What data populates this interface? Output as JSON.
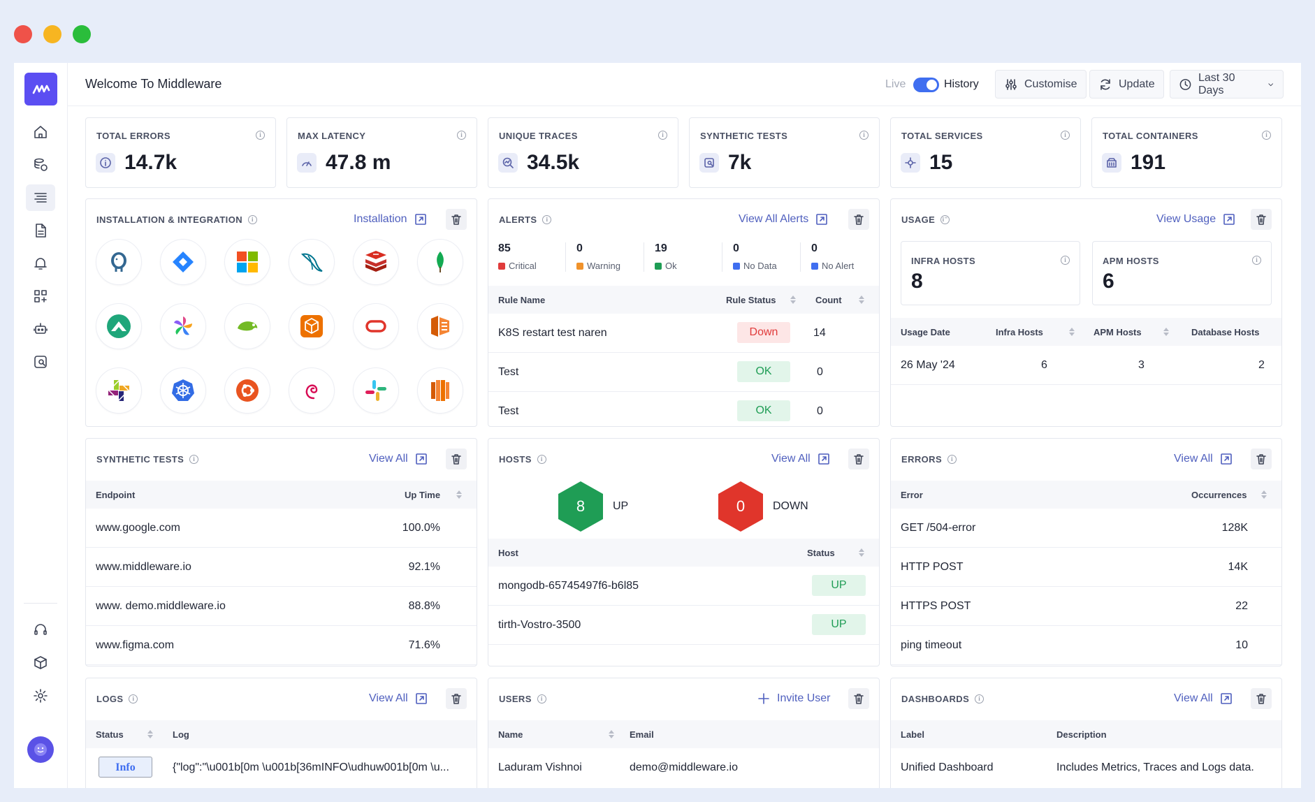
{
  "app": {
    "title": "Welcome To Middleware",
    "live_label": "Live",
    "history_label": "History"
  },
  "toolbar": {
    "customise": "Customise",
    "update": "Update",
    "range": "Last 30 Days"
  },
  "stats": [
    {
      "label": "TOTAL ERRORS",
      "value": "14.7k",
      "icon": "info-circle-icon"
    },
    {
      "label": "MAX LATENCY",
      "value": "47.8 m",
      "icon": "gauge-icon"
    },
    {
      "label": "UNIQUE TRACES",
      "value": "34.5k",
      "icon": "trace-search-icon"
    },
    {
      "label": "SYNTHETIC TESTS",
      "value": "7k",
      "icon": "synthetic-test-icon"
    },
    {
      "label": "TOTAL SERVICES",
      "value": "15",
      "icon": "services-icon"
    },
    {
      "label": "TOTAL CONTAINERS",
      "value": "191",
      "icon": "container-icon"
    }
  ],
  "installation": {
    "title": "INSTALLATION & INTEGRATION",
    "link": "Installation",
    "integrations": [
      "postgresql-icon",
      "jira-icon",
      "microsoft-icon",
      "mysql-icon",
      "redis-icon",
      "mongodb-icon",
      "rancher-icon",
      "kubernetes-pinwheel-icon",
      "opensuse-icon",
      "aws-package-icon",
      "oracle-icon",
      "aws-ecs-icon",
      "centos-icon",
      "kubernetes-icon",
      "ubuntu-icon",
      "debian-icon",
      "slack-icon",
      "aws-lambda-icon"
    ]
  },
  "alerts": {
    "title": "ALERTS",
    "link": "View All Alerts",
    "summary": [
      {
        "count": "85",
        "label": "Critical",
        "color": "#e03b3b"
      },
      {
        "count": "0",
        "label": "Warning",
        "color": "#f0922b"
      },
      {
        "count": "19",
        "label": "Ok",
        "color": "#1f9d55"
      },
      {
        "count": "0",
        "label": "No Data",
        "color": "#3f6ef0"
      },
      {
        "count": "0",
        "label": "No Alert",
        "color": "#3f6ef0"
      }
    ],
    "columns": [
      "Rule Name",
      "Rule Status",
      "Count"
    ],
    "rows": [
      {
        "name": "K8S restart test naren",
        "status": "Down",
        "count": "14"
      },
      {
        "name": "Test",
        "status": "OK",
        "count": "0"
      },
      {
        "name": "Test",
        "status": "OK",
        "count": "0"
      }
    ]
  },
  "usage": {
    "title": "USAGE",
    "link": "View Usage",
    "infra_label": "INFRA HOSTS",
    "infra_value": "8",
    "apm_label": "APM HOSTS",
    "apm_value": "6",
    "columns": [
      "Usage Date",
      "Infra Hosts",
      "APM Hosts",
      "Database Hosts"
    ],
    "rows": [
      {
        "date": "26 May '24",
        "infra": "6",
        "apm": "3",
        "db": "2"
      }
    ]
  },
  "synthetic": {
    "title": "SYNTHETIC TESTS",
    "link": "View All",
    "columns": [
      "Endpoint",
      "Up Time"
    ],
    "rows": [
      {
        "endpoint": "www.google.com",
        "uptime": "100.0%"
      },
      {
        "endpoint": "www.middleware.io",
        "uptime": "92.1%"
      },
      {
        "endpoint": "www. demo.middleware.io",
        "uptime": "88.8%"
      },
      {
        "endpoint": "www.figma.com",
        "uptime": "71.6%"
      }
    ]
  },
  "hosts": {
    "title": "HOSTS",
    "link": "View All",
    "up_count": "8",
    "up_label": "UP",
    "down_count": "0",
    "down_label": "DOWN",
    "columns": [
      "Host",
      "Status"
    ],
    "rows": [
      {
        "host": "mongodb-65745497f6-b6l85",
        "status": "UP"
      },
      {
        "host": "tirth-Vostro-3500",
        "status": "UP"
      }
    ]
  },
  "errors": {
    "title": "ERRORS",
    "link": "View All",
    "columns": [
      "Error",
      "Occurrences"
    ],
    "rows": [
      {
        "error": "GET /504-error",
        "count": "128K"
      },
      {
        "error": "HTTP POST",
        "count": "14K"
      },
      {
        "error": "HTTPS POST",
        "count": "22"
      },
      {
        "error": "ping timeout",
        "count": "10"
      }
    ]
  },
  "logs": {
    "title": "LOGS",
    "link": "View All",
    "columns": [
      "Status",
      "Log"
    ],
    "rows": [
      {
        "status": "Info",
        "log": "{\"log\":\"\\u001b[0m \\u001b[36mINFO\\udhuw001b[0m \\u..."
      }
    ]
  },
  "users": {
    "title": "USERS",
    "link": "Invite User",
    "columns": [
      "Name",
      "Email"
    ],
    "rows": [
      {
        "name": "Laduram Vishnoi",
        "email": "demo@middleware.io"
      }
    ]
  },
  "dashboards": {
    "title": "DASHBOARDS",
    "link": "View All",
    "columns": [
      "Label",
      "Description"
    ],
    "rows": [
      {
        "label": "Unified Dashboard",
        "description": "Includes Metrics, Traces and Logs data."
      }
    ]
  },
  "sidebar": {
    "items": [
      "home-icon",
      "infrastructure-icon",
      "logs-icon",
      "document-icon",
      "alerts-icon",
      "dashboard-builder-icon",
      "ai-bot-icon",
      "synthetics-icon"
    ],
    "bottom": [
      "support-icon",
      "package-icon",
      "settings-icon"
    ]
  },
  "colors": {
    "accent": "#5b4ef2",
    "link": "#4f5fbe",
    "up": "#1f9d55",
    "down": "#e03b3b"
  }
}
